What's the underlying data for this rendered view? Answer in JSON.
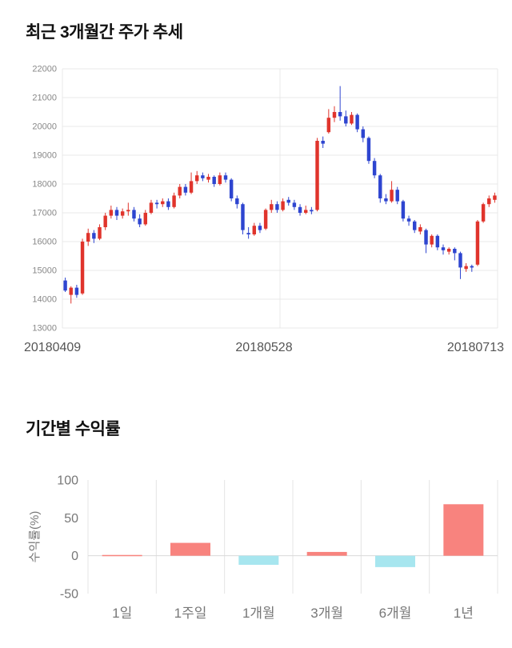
{
  "price_section": {
    "title": "최근 3개월간 주가 추세"
  },
  "returns_section": {
    "title": "기간별 수익률"
  },
  "chart_data": [
    {
      "type": "candlestick",
      "title": "최근 3개월간 주가 추세",
      "x_labels": [
        "20180409",
        "20180528",
        "20180713"
      ],
      "ylim": [
        13000,
        22000
      ],
      "y_ticks": [
        22000,
        21000,
        20000,
        19000,
        18000,
        17000,
        16000,
        15000,
        14000,
        13000
      ],
      "up_color": "#e0342c",
      "down_color": "#2e45d0",
      "grid_color": "#e9e9e9",
      "candles": [
        [
          14650,
          14750,
          14250,
          14300
        ],
        [
          14150,
          14450,
          13850,
          14400
        ],
        [
          14400,
          14500,
          14050,
          14150
        ],
        [
          14200,
          16100,
          14150,
          16000
        ],
        [
          16000,
          16450,
          15850,
          16300
        ],
        [
          16300,
          16400,
          15950,
          16100
        ],
        [
          16100,
          16600,
          16050,
          16500
        ],
        [
          16500,
          17000,
          16400,
          16900
        ],
        [
          16900,
          17250,
          16800,
          17100
        ],
        [
          17100,
          17200,
          16750,
          16900
        ],
        [
          16900,
          17150,
          16800,
          17050
        ],
        [
          17050,
          17350,
          16900,
          17100
        ],
        [
          17100,
          17200,
          16700,
          16800
        ],
        [
          16800,
          16950,
          16500,
          16600
        ],
        [
          16600,
          17100,
          16550,
          17000
        ],
        [
          17000,
          17450,
          16950,
          17350
        ],
        [
          17350,
          17450,
          17150,
          17300
        ],
        [
          17300,
          17500,
          17200,
          17400
        ],
        [
          17400,
          17500,
          17100,
          17200
        ],
        [
          17200,
          17700,
          17150,
          17600
        ],
        [
          17600,
          18000,
          17500,
          17900
        ],
        [
          17900,
          18000,
          17600,
          17700
        ],
        [
          17700,
          18400,
          17650,
          18100
        ],
        [
          18100,
          18450,
          18000,
          18300
        ],
        [
          18300,
          18400,
          18100,
          18200
        ],
        [
          18150,
          18350,
          18050,
          18250
        ],
        [
          18250,
          18300,
          17900,
          18000
        ],
        [
          18000,
          18400,
          17950,
          18300
        ],
        [
          18300,
          18400,
          18050,
          18150
        ],
        [
          18150,
          18200,
          17400,
          17500
        ],
        [
          17500,
          17600,
          17150,
          17300
        ],
        [
          17300,
          17350,
          16250,
          16400
        ],
        [
          16300,
          16500,
          16100,
          16250
        ],
        [
          16250,
          16650,
          16200,
          16550
        ],
        [
          16550,
          16650,
          16300,
          16400
        ],
        [
          16450,
          17150,
          16400,
          17100
        ],
        [
          17100,
          17450,
          17000,
          17300
        ],
        [
          17300,
          17400,
          17000,
          17100
        ],
        [
          17100,
          17500,
          17050,
          17400
        ],
        [
          17450,
          17550,
          17250,
          17350
        ],
        [
          17350,
          17450,
          17100,
          17200
        ],
        [
          17200,
          17300,
          16900,
          17000
        ],
        [
          17000,
          17250,
          16950,
          17100
        ],
        [
          17100,
          17200,
          16950,
          17050
        ],
        [
          17100,
          19600,
          17050,
          19500
        ],
        [
          19500,
          19650,
          19250,
          19400
        ],
        [
          19800,
          20600,
          19750,
          20300
        ],
        [
          20300,
          20700,
          20150,
          20500
        ],
        [
          20500,
          21400,
          20200,
          20350
        ],
        [
          20350,
          20550,
          20000,
          20100
        ],
        [
          20100,
          20500,
          20050,
          20400
        ],
        [
          20400,
          20450,
          19800,
          19900
        ],
        [
          19900,
          20000,
          19450,
          19600
        ],
        [
          19600,
          19650,
          18700,
          18800
        ],
        [
          18800,
          18900,
          18200,
          18300
        ],
        [
          18300,
          18350,
          17350,
          17500
        ],
        [
          17500,
          17650,
          17300,
          17400
        ],
        [
          17400,
          18100,
          17350,
          17800
        ],
        [
          17800,
          17900,
          17300,
          17400
        ],
        [
          17400,
          17450,
          16700,
          16800
        ],
        [
          16800,
          16900,
          16550,
          16700
        ],
        [
          16700,
          16750,
          16300,
          16400
        ],
        [
          16350,
          16600,
          16250,
          16500
        ],
        [
          16400,
          16450,
          15600,
          15900
        ],
        [
          15900,
          16250,
          15800,
          16200
        ],
        [
          16200,
          16250,
          15700,
          15800
        ],
        [
          15800,
          15900,
          15550,
          15700
        ],
        [
          15650,
          15800,
          15550,
          15750
        ],
        [
          15750,
          15800,
          15350,
          15600
        ],
        [
          15600,
          15650,
          14700,
          15100
        ],
        [
          15050,
          15250,
          14950,
          15150
        ],
        [
          15150,
          15200,
          14950,
          15100
        ],
        [
          15200,
          16750,
          15150,
          16700
        ],
        [
          16700,
          17350,
          16650,
          17300
        ],
        [
          17300,
          17600,
          17200,
          17500
        ],
        [
          17450,
          17700,
          17350,
          17600
        ]
      ]
    },
    {
      "type": "bar",
      "title": "기간별 수익률",
      "categories": [
        "1일",
        "1주일",
        "1개월",
        "3개월",
        "6개월",
        "1년"
      ],
      "values": [
        1,
        17,
        -12,
        5,
        -15,
        68
      ],
      "ylabel": "수익률(%)",
      "ylim": [
        -50,
        100
      ],
      "y_ticks": [
        100,
        50,
        0,
        -50
      ],
      "positive_color": "#f8837e",
      "negative_color": "#a7e6ef",
      "grid_color": "#e4e4e4",
      "zero_line_color": "#d9d9d9",
      "legend_position": "none",
      "grid": "vertical-separators"
    }
  ]
}
